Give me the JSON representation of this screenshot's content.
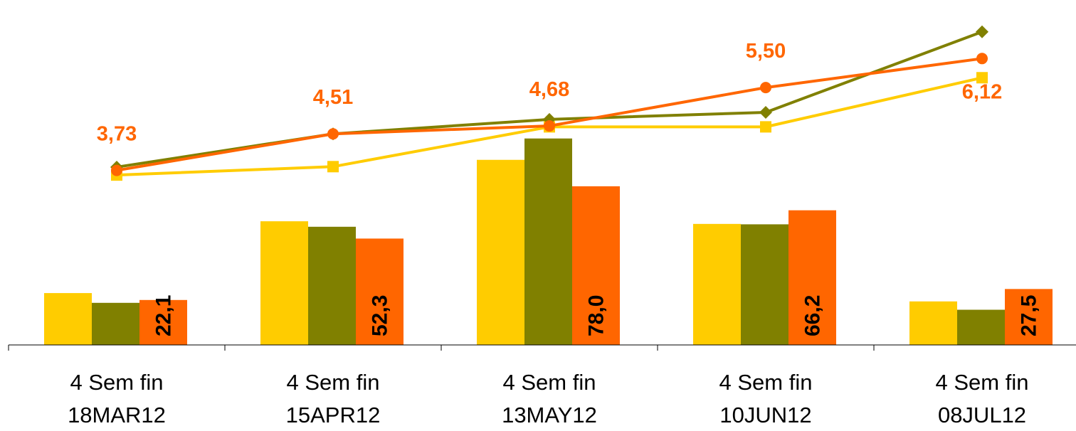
{
  "chart_data": {
    "type": "bar",
    "categories": [
      [
        "4 Sem fin",
        "18MAR12"
      ],
      [
        "4 Sem fin",
        "15APR12"
      ],
      [
        "4 Sem fin",
        "13MAY12"
      ],
      [
        "4 Sem fin",
        "10JUN12"
      ],
      [
        "4 Sem fin",
        "08JUL12"
      ]
    ],
    "title": "",
    "xlabel": "",
    "ylabel": "",
    "legend": "none",
    "grid": false,
    "bar_axis": {
      "ylim": [
        0,
        100
      ]
    },
    "line_axis": {
      "ylim": [
        0,
        7.3
      ]
    },
    "series": [
      {
        "kind": "bar",
        "color": "#FFCC00",
        "values": [
          25.5,
          60.8,
          91.0,
          59.5,
          21.4
        ],
        "show_labels": false
      },
      {
        "kind": "bar",
        "color": "#808000",
        "values": [
          20.7,
          58.1,
          101.5,
          59.3,
          17.3
        ],
        "show_labels": false
      },
      {
        "kind": "bar",
        "color": "#FF6600",
        "values": [
          22.1,
          52.3,
          78.0,
          66.2,
          27.5
        ],
        "labels": [
          "22,1",
          "52,3",
          "78,0",
          "66,2",
          "27,5"
        ],
        "show_labels": true
      },
      {
        "kind": "line",
        "marker": "square",
        "color": "#FFCC00",
        "values": [
          3.63,
          3.81,
          4.66,
          4.66,
          5.71
        ],
        "show_labels": false
      },
      {
        "kind": "line",
        "marker": "diamond",
        "color": "#808000",
        "values": [
          3.8,
          4.51,
          4.82,
          4.97,
          6.69
        ],
        "show_labels": false
      },
      {
        "kind": "line",
        "marker": "circle",
        "color": "#FF6600",
        "values": [
          3.73,
          4.51,
          4.68,
          5.5,
          6.12
        ],
        "labels": [
          "3,73",
          "4,51",
          "4,68",
          "5,50",
          "6,12"
        ],
        "show_labels": true
      }
    ]
  }
}
